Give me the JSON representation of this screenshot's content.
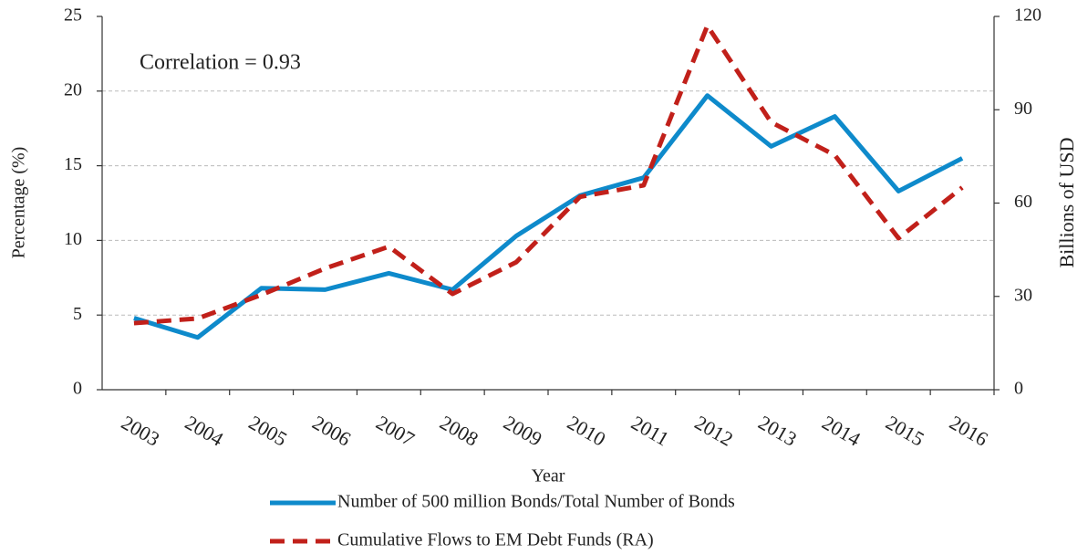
{
  "chart_data": {
    "type": "line",
    "annotation": "Correlation = 0.93",
    "xlabel": "Year",
    "ylabel": "Percentage (%)",
    "y2label": "Billions of USD",
    "categories": [
      "2003",
      "2004",
      "2005",
      "2006",
      "2007",
      "2008",
      "2009",
      "2010",
      "2011",
      "2012",
      "2013",
      "2014",
      "2015",
      "2016"
    ],
    "series": [
      {
        "name": "Number of 500 million Bonds/Total Number of Bonds",
        "color": "#0e8acb",
        "dash": false,
        "values": [
          4.8,
          3.5,
          6.8,
          6.7,
          7.8,
          6.7,
          10.3,
          13.0,
          14.2,
          19.7,
          16.3,
          18.3,
          13.3,
          15.5
        ]
      },
      {
        "name": "Cumulative Flows to EM Debt Funds (RA)",
        "color": "#c1201a",
        "dash": true,
        "axis": "y2",
        "values": [
          21.4,
          22.9,
          30.5,
          39,
          46,
          30.8,
          41,
          62,
          65.7,
          117,
          86,
          75.4,
          48.7,
          65
        ]
      }
    ],
    "ylim": [
      0,
      25
    ],
    "yticks": [
      0,
      5,
      10,
      15,
      20,
      25
    ],
    "y2lim": [
      0,
      120
    ],
    "y2ticks": [
      0,
      30,
      60,
      90,
      120
    ],
    "grid": true
  }
}
